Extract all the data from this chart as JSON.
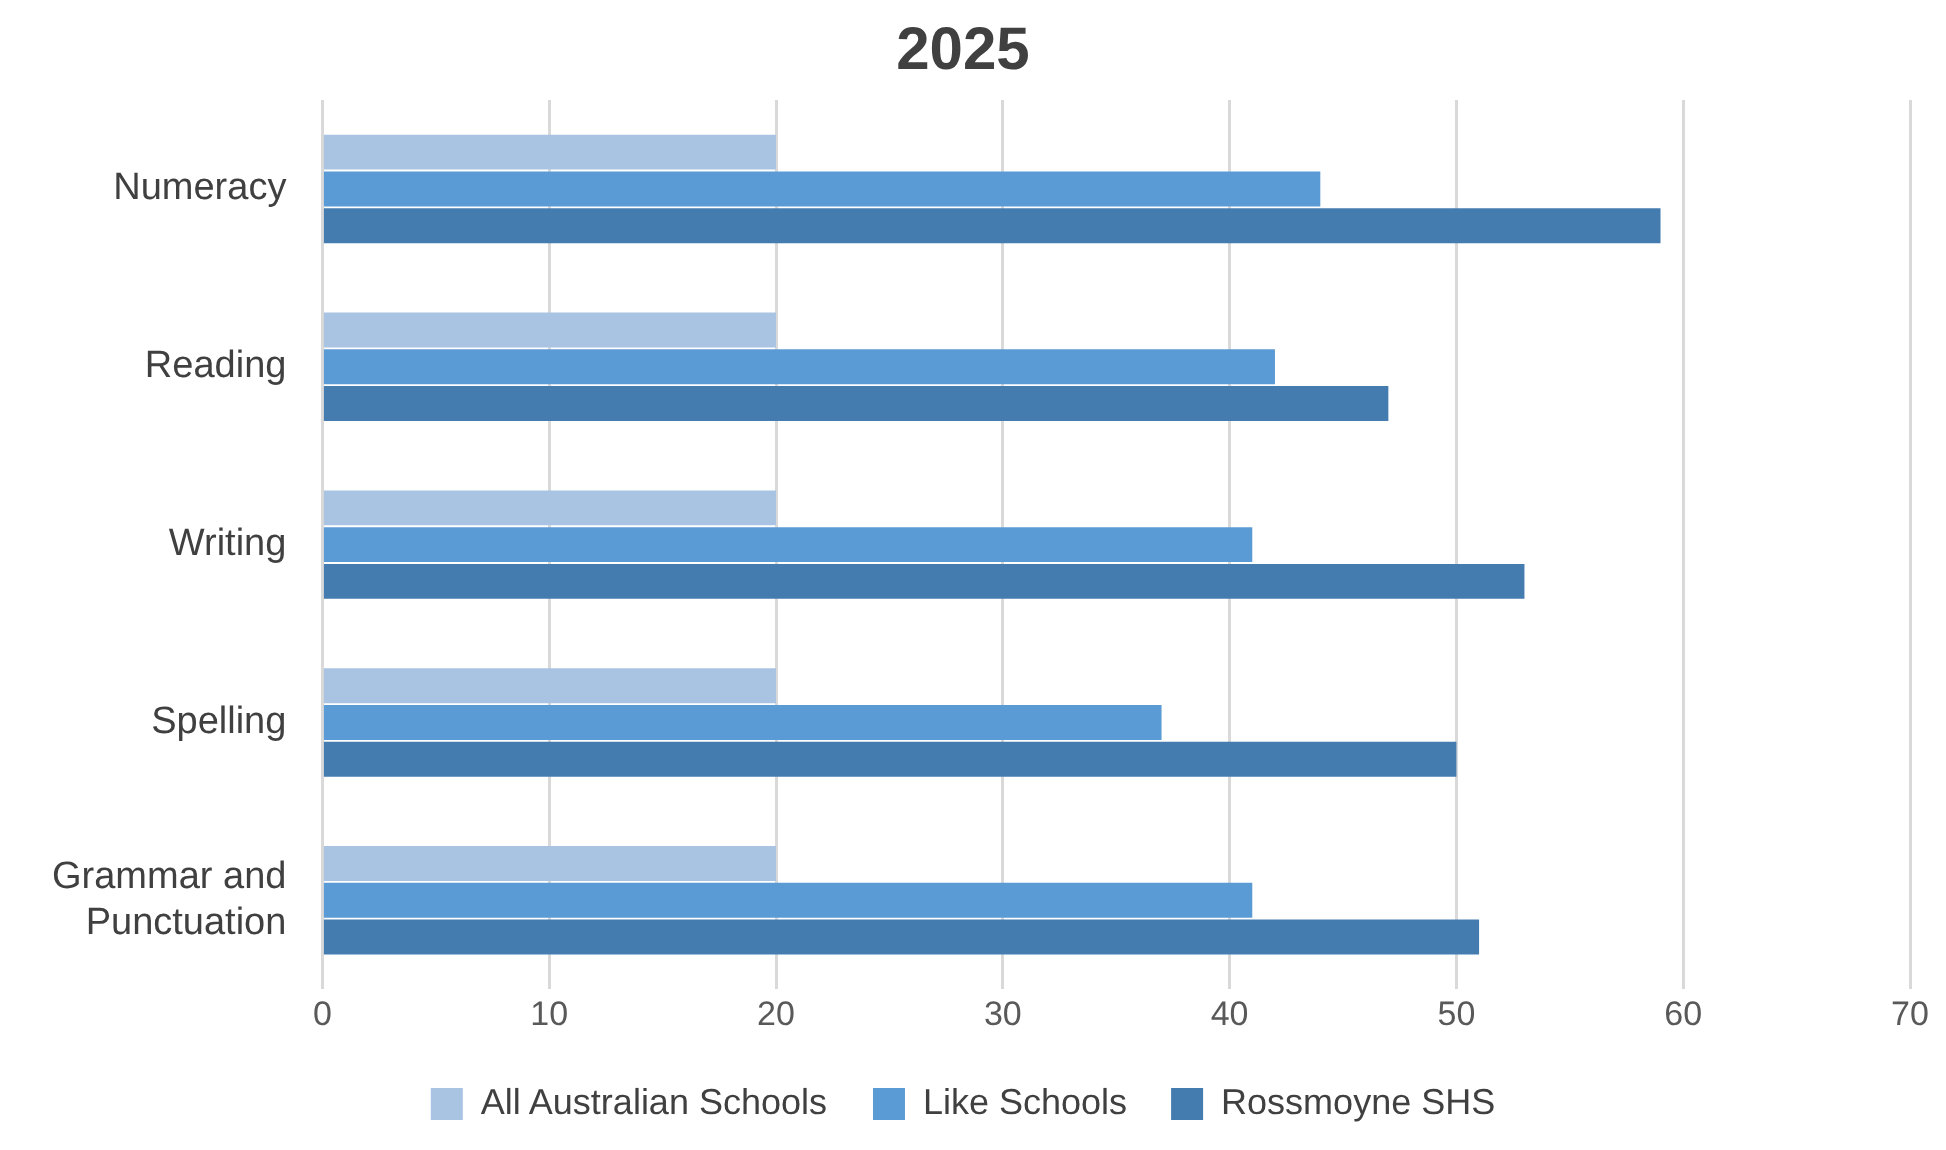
{
  "chart_data": {
    "type": "bar",
    "orientation": "horizontal",
    "title": "2025",
    "categories": [
      "Numeracy",
      "Reading",
      "Writing",
      "Spelling",
      "Grammar and Punctuation"
    ],
    "series": [
      {
        "name": "All Australian Schools",
        "color": "#a9c3e3",
        "values": [
          20,
          20,
          20,
          20,
          20
        ]
      },
      {
        "name": "Like Schools",
        "color": "#5b9bd5",
        "values": [
          44,
          42,
          41,
          37,
          41
        ]
      },
      {
        "name": "Rossmoyne SHS",
        "color": "#447cb0",
        "values": [
          59,
          47,
          53,
          50,
          51
        ]
      }
    ],
    "xlim": [
      0,
      70
    ],
    "xticks": [
      0,
      10,
      20,
      30,
      40,
      50,
      60,
      70
    ],
    "grid": "x",
    "legend": "bottom"
  }
}
